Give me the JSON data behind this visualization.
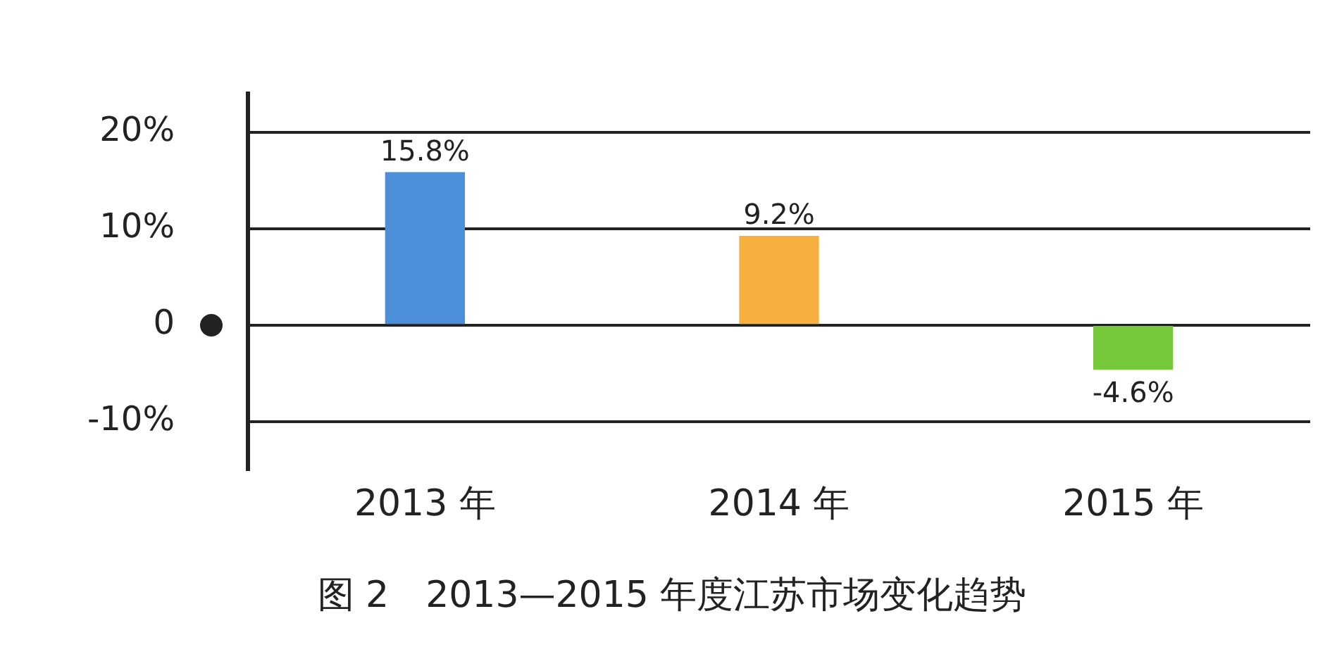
{
  "chart_data": {
    "type": "bar",
    "title": "图 2　2013—2015 年度江苏市场变化趋势",
    "categories": [
      "2013 年",
      "2014 年",
      "2015 年"
    ],
    "values": [
      15.8,
      9.2,
      -4.6
    ],
    "colors": [
      "#4a8fd8",
      "#f5b040",
      "#78c83c"
    ],
    "value_labels": [
      "15.8%",
      "9.2%",
      "-4.6%"
    ],
    "ylim": [
      -15,
      24
    ],
    "yticks": [
      {
        "value": -10,
        "label": "-10%"
      },
      {
        "value": 0,
        "label": "0"
      },
      {
        "value": 10,
        "label": "10%"
      },
      {
        "value": 20,
        "label": "20%"
      }
    ],
    "grid": "y",
    "legend": false
  }
}
